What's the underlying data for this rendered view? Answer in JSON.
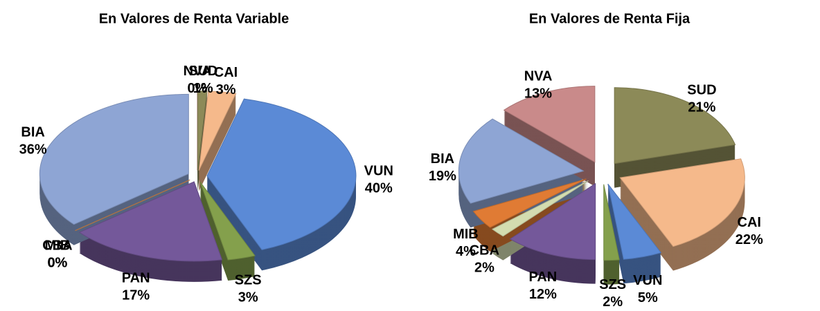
{
  "chart_data": [
    {
      "type": "pie",
      "title": "En Valores de Renta Variable",
      "categories": [
        "NVA",
        "SUD",
        "CAI",
        "VUN",
        "SZS",
        "PAN",
        "CBA",
        "MIB",
        "BIA"
      ],
      "values": [
        0,
        1,
        3,
        40,
        3,
        17,
        0,
        0,
        36
      ],
      "value_labels": [
        "0%",
        "1%",
        "3%",
        "40%",
        "3%",
        "17%",
        "0%",
        "0%",
        "36%"
      ],
      "colors": [
        "#c98a8a",
        "#8c8a58",
        "#f5b98b",
        "#5b8ad6",
        "#84a04c",
        "#74589a",
        "#d3dcb0",
        "#e07b34",
        "#8ea5d4"
      ]
    },
    {
      "type": "pie",
      "title": "En Valores de Renta Fija",
      "categories": [
        "SUD",
        "CAI",
        "VUN",
        "SZS",
        "PAN",
        "CBA",
        "MIB",
        "BIA",
        "NVA"
      ],
      "values": [
        21,
        22,
        5,
        2,
        12,
        2,
        4,
        19,
        13
      ],
      "value_labels": [
        "21%",
        "22%",
        "5%",
        "2%",
        "12%",
        "2%",
        "4%",
        "19%",
        "13%"
      ],
      "colors": [
        "#8c8a58",
        "#f5b98b",
        "#5b8ad6",
        "#84a04c",
        "#74589a",
        "#d3dcb0",
        "#e07b34",
        "#8ea5d4",
        "#c98a8a"
      ]
    }
  ]
}
